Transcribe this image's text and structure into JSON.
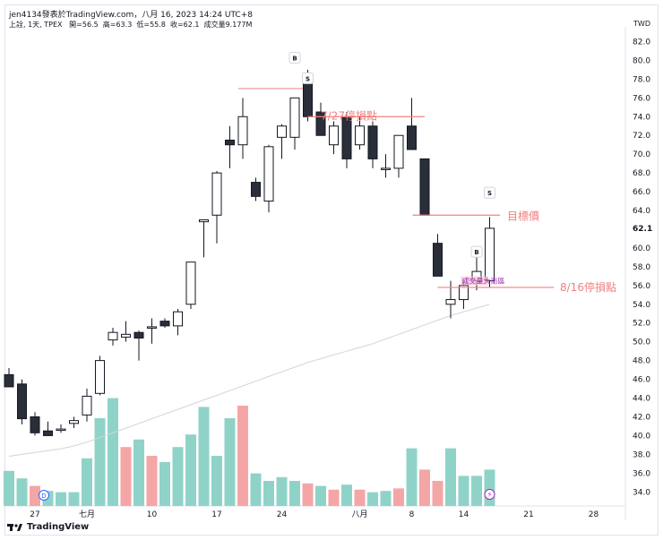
{
  "header": {
    "credit": "jen4134發表於TradingView.com，八月 16, 2023 14:24 UTC+8",
    "symbol_line": "上詮, 1天, TPEX",
    "open_label": "開=56.5",
    "high_label": "高=63.3",
    "low_label": "低=55.8",
    "close_label": "收=62.1",
    "volume_label": "成交量9.177M",
    "currency": "TWD"
  },
  "footer": {
    "brand": "TradingView",
    "logo": "tv-logo-icon"
  },
  "colors": {
    "up": "#ffffff",
    "down": "#2a2e39",
    "vol_up": "#8fd3c8",
    "vol_down": "#f4a6a6",
    "annot": "#f08080",
    "purple": "#9c27b0",
    "ma": "#d1d4dc"
  },
  "chart_data": {
    "type": "candlestick",
    "y_axis": {
      "min": 32.5,
      "max": 83.0,
      "ticks": [
        82.0,
        80.0,
        78.0,
        76.0,
        74.0,
        72.0,
        70.0,
        68.0,
        66.0,
        64.0,
        62.1,
        60.0,
        58.0,
        56.0,
        54.0,
        52.0,
        50.0,
        48.0,
        46.0,
        44.0,
        42.0,
        40.0,
        38.0,
        36.0,
        34.0
      ],
      "current_price": "62.1"
    },
    "x_axis": {
      "ticks": [
        {
          "label": "27",
          "i": 2
        },
        {
          "label": "七月",
          "i": 6
        },
        {
          "label": "10",
          "i": 11
        },
        {
          "label": "17",
          "i": 16
        },
        {
          "label": "24",
          "i": 21
        },
        {
          "label": "八月",
          "i": 27
        },
        {
          "label": "8",
          "i": 31
        },
        {
          "label": "14",
          "i": 35
        },
        {
          "label": "21",
          "i": 40
        },
        {
          "label": "28",
          "i": 45
        }
      ]
    },
    "candles": [
      {
        "o": 46.5,
        "h": 47.2,
        "l": 45.5,
        "c": 45.2
      },
      {
        "o": 45.5,
        "h": 46.0,
        "l": 41.2,
        "c": 41.8
      },
      {
        "o": 42.0,
        "h": 42.5,
        "l": 40.0,
        "c": 40.3
      },
      {
        "o": 40.5,
        "h": 41.5,
        "l": 40.0,
        "c": 40.0
      },
      {
        "o": 40.6,
        "h": 41.2,
        "l": 40.3,
        "c": 40.7
      },
      {
        "o": 41.3,
        "h": 42.0,
        "l": 40.8,
        "c": 41.6
      },
      {
        "o": 42.2,
        "h": 45.0,
        "l": 41.5,
        "c": 44.2
      },
      {
        "o": 44.5,
        "h": 48.5,
        "l": 44.3,
        "c": 48.0
      },
      {
        "o": 50.2,
        "h": 51.5,
        "l": 49.6,
        "c": 51.0
      },
      {
        "o": 50.5,
        "h": 52.2,
        "l": 50.0,
        "c": 50.8
      },
      {
        "o": 51.0,
        "h": 51.2,
        "l": 48.0,
        "c": 50.4
      },
      {
        "o": 51.5,
        "h": 52.5,
        "l": 49.8,
        "c": 51.6
      },
      {
        "o": 52.2,
        "h": 52.5,
        "l": 51.5,
        "c": 51.7
      },
      {
        "o": 51.7,
        "h": 53.5,
        "l": 50.7,
        "c": 53.2
      },
      {
        "o": 54.0,
        "h": 58.0,
        "l": 53.5,
        "c": 58.5
      },
      {
        "o": 62.8,
        "h": 63.0,
        "l": 59.0,
        "c": 63.0
      },
      {
        "o": 63.5,
        "h": 68.2,
        "l": 60.5,
        "c": 68.0
      },
      {
        "o": 71.5,
        "h": 73.0,
        "l": 68.5,
        "c": 71.0
      },
      {
        "o": 71.0,
        "h": 76.0,
        "l": 69.5,
        "c": 74.0
      },
      {
        "o": 67.0,
        "h": 67.5,
        "l": 65.0,
        "c": 65.5
      },
      {
        "o": 65.0,
        "h": 71.0,
        "l": 63.8,
        "c": 70.8
      },
      {
        "o": 71.8,
        "h": 73.2,
        "l": 69.5,
        "c": 73.0
      },
      {
        "o": 71.8,
        "h": 75.5,
        "l": 70.5,
        "c": 76.0
      },
      {
        "o": 78.0,
        "h": 79.0,
        "l": 73.5,
        "c": 74.0
      },
      {
        "o": 74.5,
        "h": 75.5,
        "l": 72.0,
        "c": 72.0
      },
      {
        "o": 71.0,
        "h": 73.5,
        "l": 70.0,
        "c": 73.0
      },
      {
        "o": 74.0,
        "h": 74.5,
        "l": 68.5,
        "c": 69.5
      },
      {
        "o": 71.0,
        "h": 74.0,
        "l": 70.5,
        "c": 73.0
      },
      {
        "o": 73.0,
        "h": 73.5,
        "l": 68.5,
        "c": 69.5
      },
      {
        "o": 68.5,
        "h": 70.0,
        "l": 67.5,
        "c": 68.5
      },
      {
        "o": 68.5,
        "h": 72.0,
        "l": 67.5,
        "c": 72.0
      },
      {
        "o": 73.0,
        "h": 76.0,
        "l": 70.5,
        "c": 70.5
      },
      {
        "o": 69.5,
        "h": 69.5,
        "l": 63.5,
        "c": 63.5
      },
      {
        "o": 60.5,
        "h": 61.5,
        "l": 57.0,
        "c": 57.0
      },
      {
        "o": 54.0,
        "h": 56.5,
        "l": 52.5,
        "c": 54.5
      },
      {
        "o": 54.5,
        "h": 56.5,
        "l": 53.5,
        "c": 56.0
      },
      {
        "o": 56.5,
        "h": 59.0,
        "l": 55.5,
        "c": 57.5
      },
      {
        "o": 56.5,
        "h": 63.3,
        "l": 55.8,
        "c": 62.1
      }
    ],
    "volume_ratio": [
      0.28,
      0.22,
      0.16,
      0.12,
      0.11,
      0.11,
      0.38,
      0.7,
      0.86,
      0.47,
      0.53,
      0.4,
      0.35,
      0.47,
      0.57,
      0.79,
      0.4,
      0.7,
      0.8,
      0.26,
      0.2,
      0.23,
      0.2,
      0.18,
      0.16,
      0.13,
      0.17,
      0.13,
      0.11,
      0.12,
      0.14,
      0.46,
      0.29,
      0.2,
      0.46,
      0.24,
      0.24,
      0.29
    ],
    "volume_direction": [
      "up",
      "up",
      "down",
      "up",
      "up",
      "up",
      "up",
      "up",
      "up",
      "down",
      "up",
      "down",
      "up",
      "up",
      "up",
      "up",
      "up",
      "up",
      "down",
      "up",
      "up",
      "up",
      "up",
      "down",
      "up",
      "down",
      "up",
      "down",
      "up",
      "up",
      "down",
      "up",
      "down",
      "down",
      "up",
      "up",
      "up",
      "up"
    ],
    "moving_average": [
      37.8,
      38.0,
      38.2,
      38.4,
      38.6,
      38.9,
      39.3,
      39.8,
      40.3,
      40.8,
      41.3,
      41.8,
      42.3,
      42.8,
      43.3,
      43.8,
      44.3,
      44.8,
      45.3,
      45.8,
      46.3,
      46.8,
      47.3,
      47.8,
      48.2,
      48.6,
      49.0,
      49.4,
      49.8,
      50.3,
      50.8,
      51.3,
      51.8,
      52.3,
      52.8,
      53.2,
      53.6,
      54.0
    ],
    "annotations": [
      {
        "label": "7/27停損點",
        "price": 74.0
      },
      {
        "label": "目標價",
        "price": 63.5
      },
      {
        "label": "8/16停損點",
        "price": 55.8
      },
      {
        "label": "成交量大衝區",
        "price": 56.5
      }
    ],
    "markers": [
      {
        "label": "B",
        "i": 22,
        "price": 80.2
      },
      {
        "label": "S",
        "i": 23,
        "price": 78.0
      },
      {
        "label": "B",
        "i": 36,
        "price": 59.5
      },
      {
        "label": "S",
        "i": 37,
        "price": 65.8
      }
    ],
    "top_line_price": 77.0
  }
}
